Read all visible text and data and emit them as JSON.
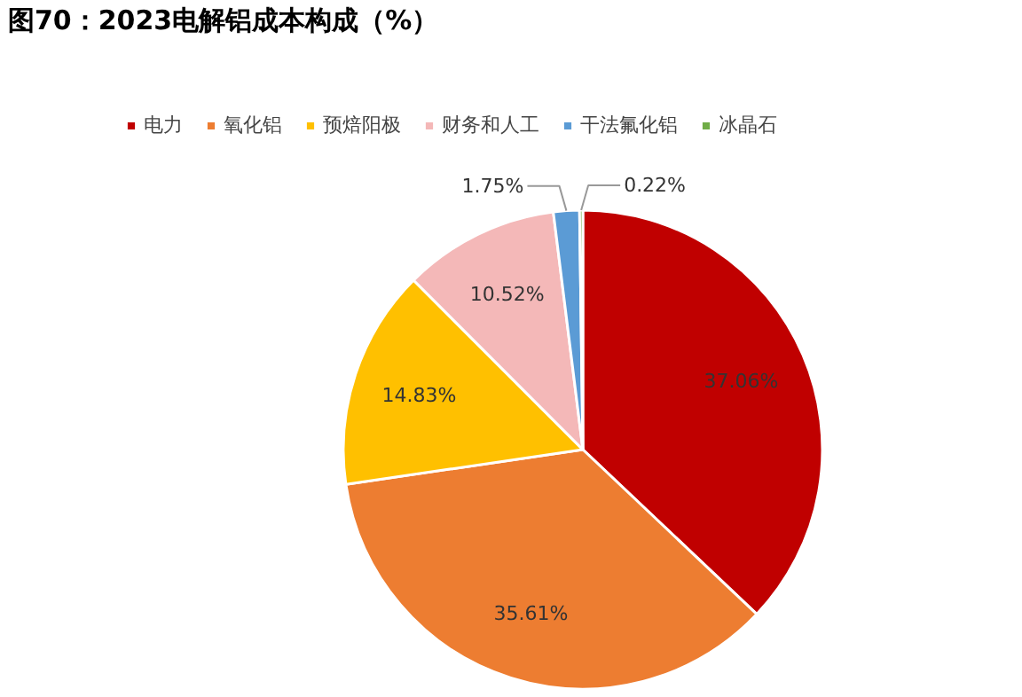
{
  "chart_data": {
    "type": "pie",
    "title": "图70：2023电解铝成本构成（%）",
    "categories": [
      "电力",
      "氧化铝",
      "预焙阳极",
      "财务和人工",
      "干法氟化铝",
      "冰晶石"
    ],
    "values": [
      37.06,
      35.61,
      14.83,
      10.52,
      1.75,
      0.22
    ],
    "colors": [
      "#c00000",
      "#ed7d31",
      "#ffc000",
      "#f4b8b8",
      "#5b9bd5",
      "#70ad47"
    ],
    "value_labels": [
      "37.06%",
      "35.61%",
      "14.83%",
      "10.52%",
      "1.75%",
      "0.22%"
    ],
    "legend": "top"
  }
}
